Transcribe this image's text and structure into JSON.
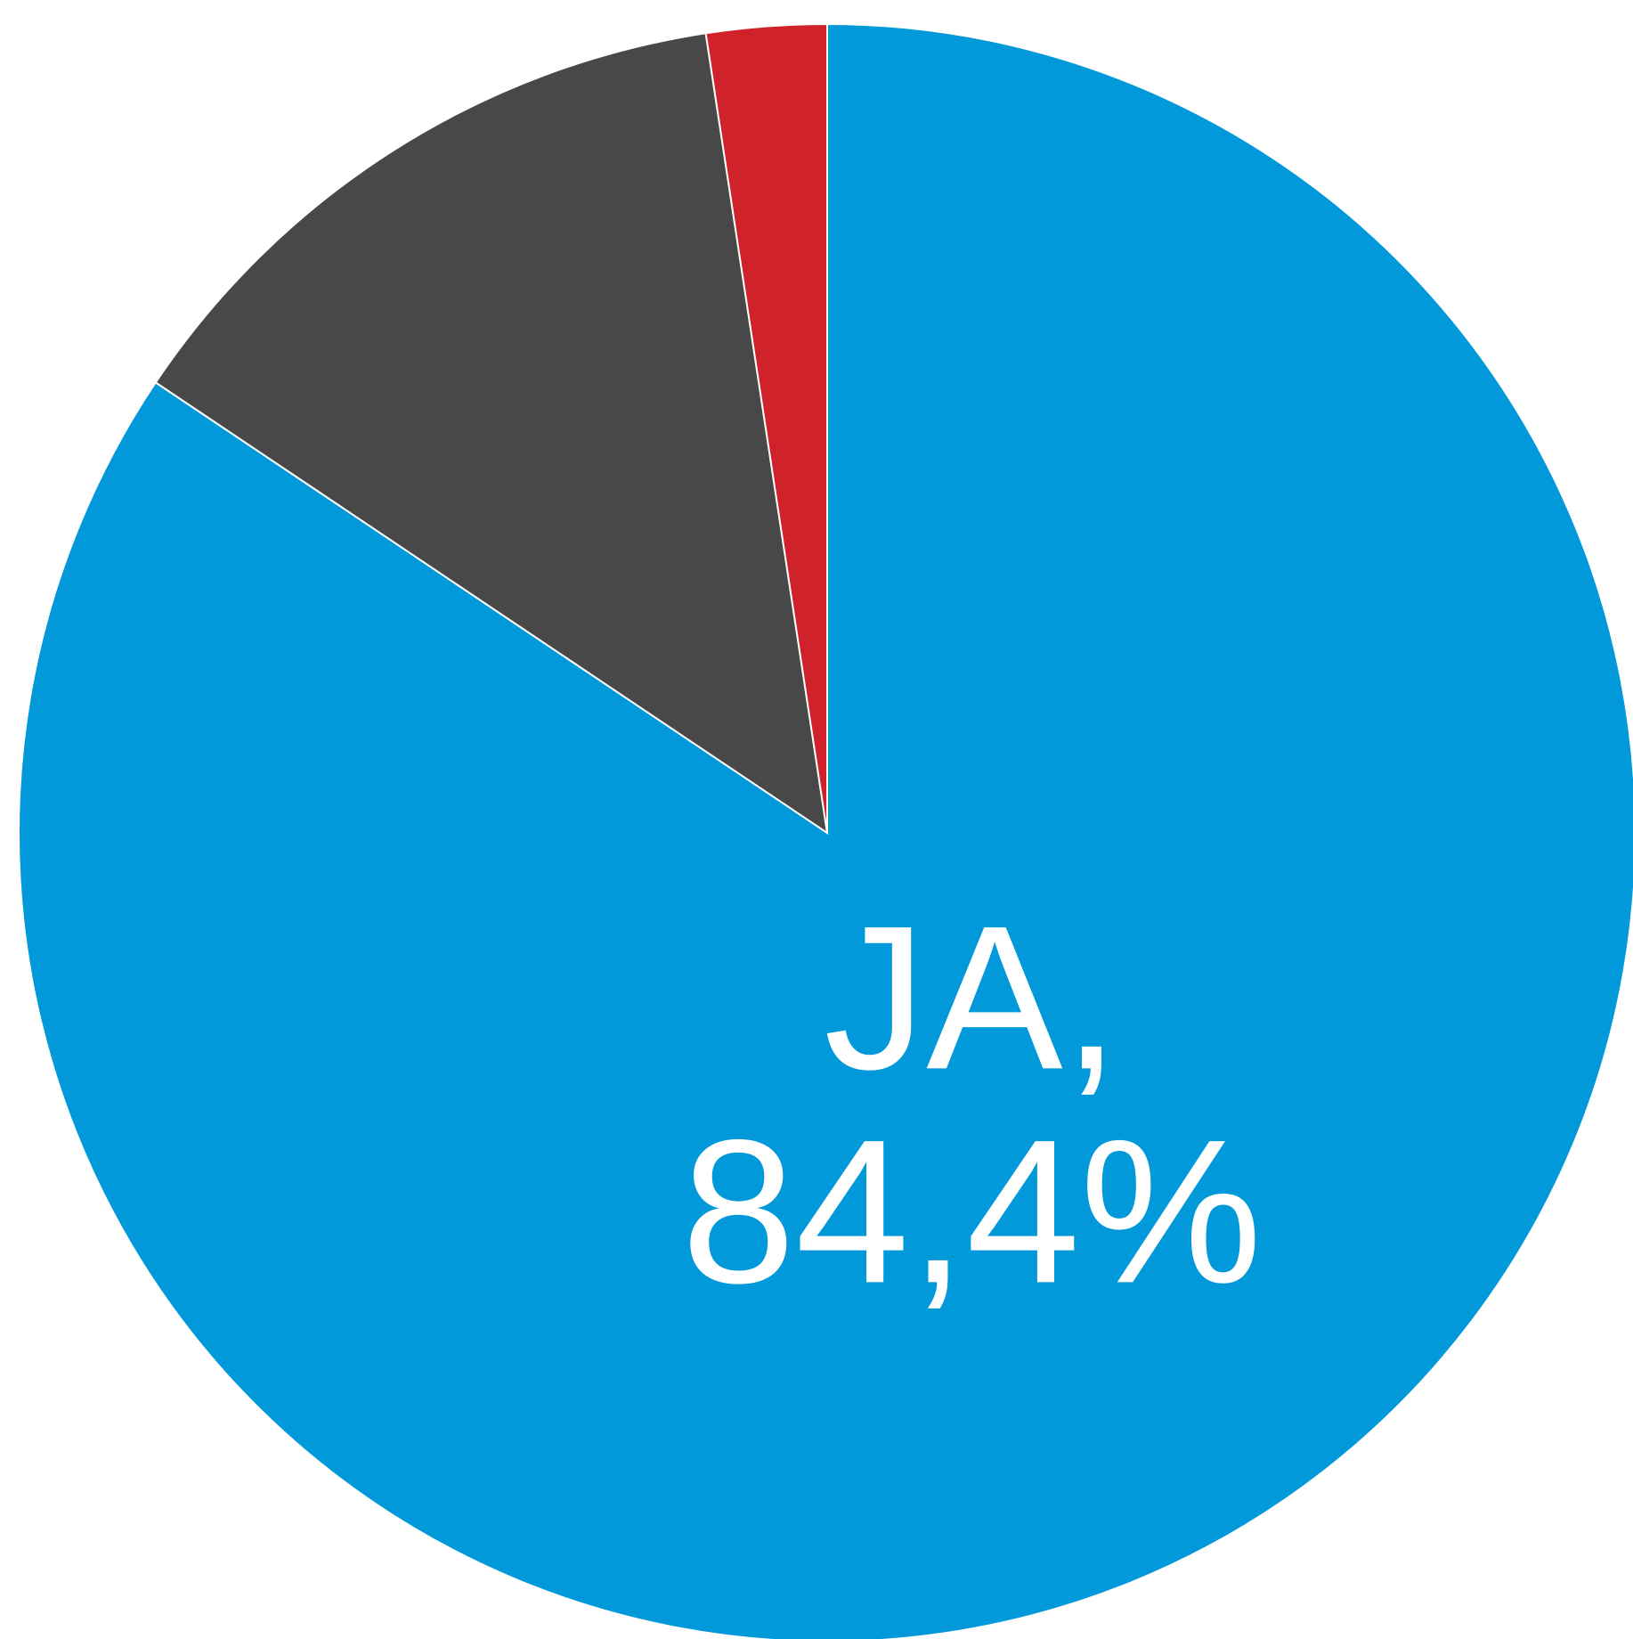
{
  "chart_data": {
    "type": "pie",
    "categories": [
      "JA,",
      null,
      null
    ],
    "values": [
      84.4,
      13.2,
      2.4
    ],
    "value_labels": [
      "84,4%",
      null,
      null
    ],
    "colors": [
      "#0299da",
      "#484848",
      "#d0222a"
    ]
  }
}
